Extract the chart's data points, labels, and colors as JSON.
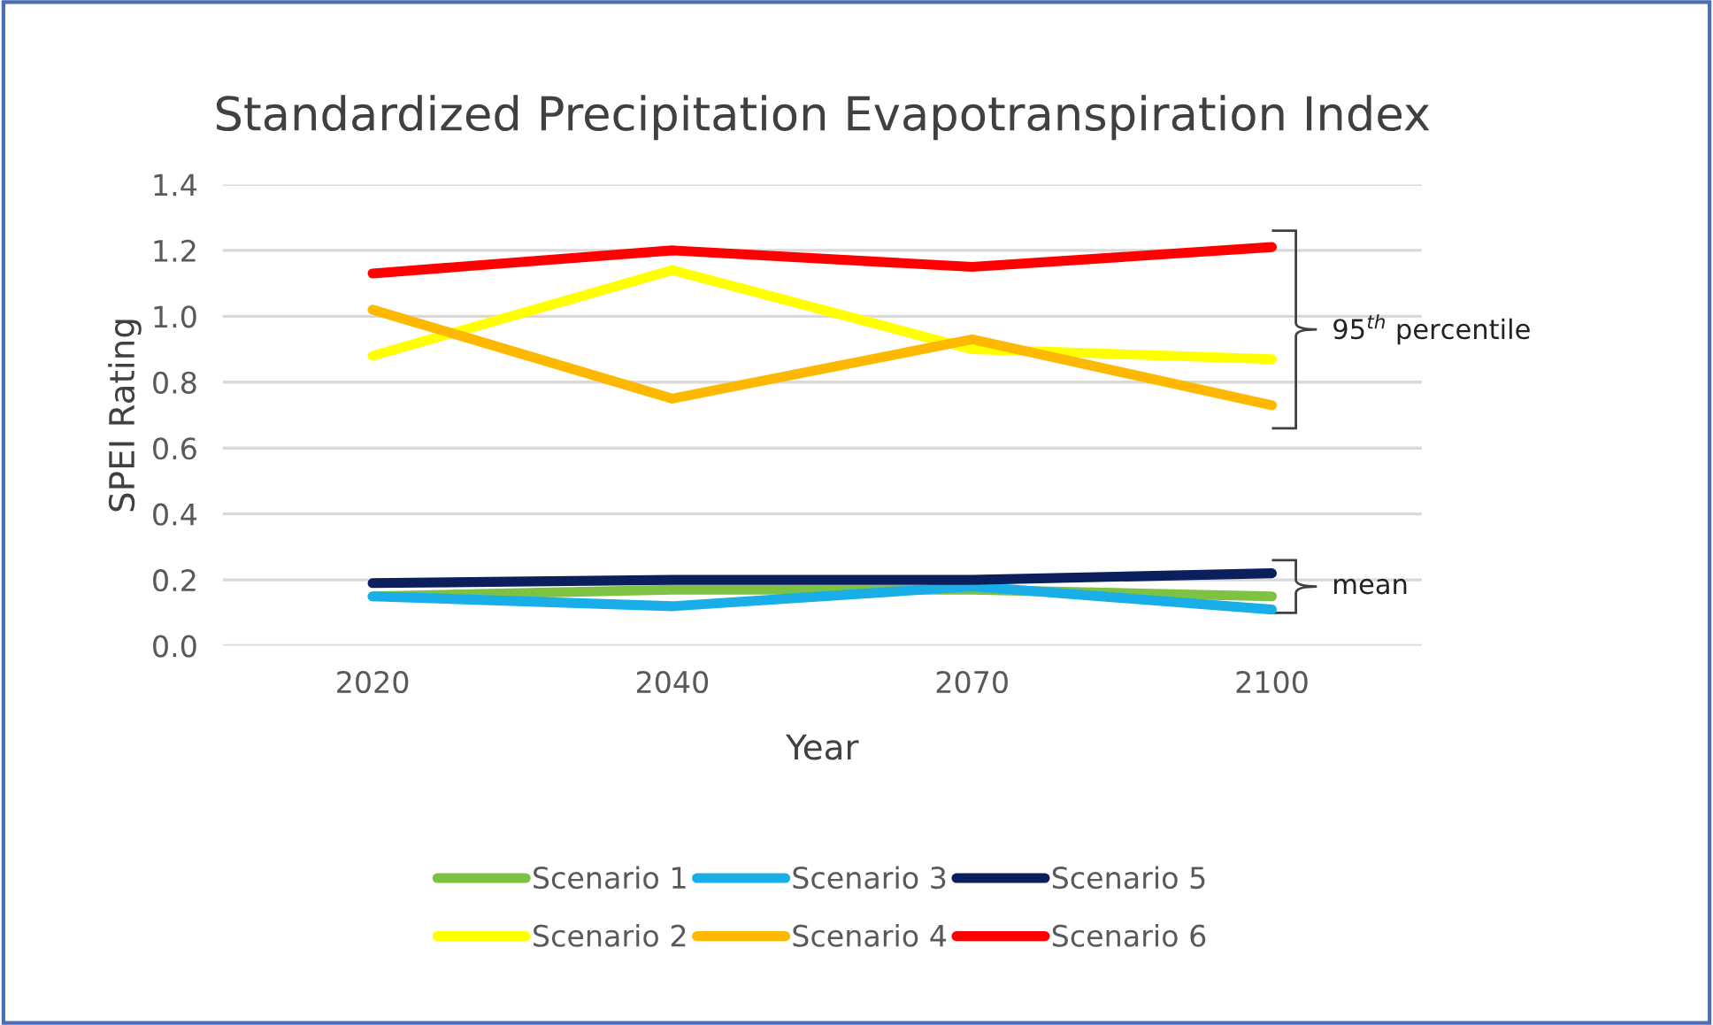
{
  "chart_data": {
    "type": "line",
    "title": "Standardized Precipitation Evapotranspiration Index",
    "xlabel": "Year",
    "ylabel": "SPEI Rating",
    "categories": [
      "2020",
      "2040",
      "2070",
      "2100"
    ],
    "series": [
      {
        "name": "Scenario 1",
        "color": "#7dc242",
        "values": [
          0.15,
          0.17,
          0.17,
          0.15
        ]
      },
      {
        "name": "Scenario 2",
        "color": "#ffff00",
        "values": [
          0.88,
          1.14,
          0.9,
          0.87
        ]
      },
      {
        "name": "Scenario 3",
        "color": "#1aaee8",
        "values": [
          0.15,
          0.12,
          0.18,
          0.11
        ]
      },
      {
        "name": "Scenario 4",
        "color": "#ffb800",
        "values": [
          1.02,
          0.75,
          0.93,
          0.73
        ]
      },
      {
        "name": "Scenario 5",
        "color": "#0a1f5c",
        "values": [
          0.19,
          0.2,
          0.2,
          0.22
        ]
      },
      {
        "name": "Scenario 6",
        "color": "#ff0000",
        "values": [
          1.13,
          1.2,
          1.15,
          1.21
        ]
      }
    ],
    "ylim": [
      0,
      1.4
    ],
    "yticks": [
      {
        "value": 0,
        "label": "0.0"
      },
      {
        "value": 0.2,
        "label": "0.2"
      },
      {
        "value": 0.4,
        "label": "0.4"
      },
      {
        "value": 0.6,
        "label": "0.6"
      },
      {
        "value": 0.8,
        "label": "0.8"
      },
      {
        "value": 1.0,
        "label": "1.0"
      },
      {
        "value": 1.2,
        "label": "1.2"
      },
      {
        "value": 1.4,
        "label": "1.4"
      }
    ],
    "grid": "y",
    "legend": "bottom",
    "marker": "none",
    "line_style": "solid",
    "annotations": [
      "95$^{th}$ percentile",
      "mean"
    ]
  }
}
